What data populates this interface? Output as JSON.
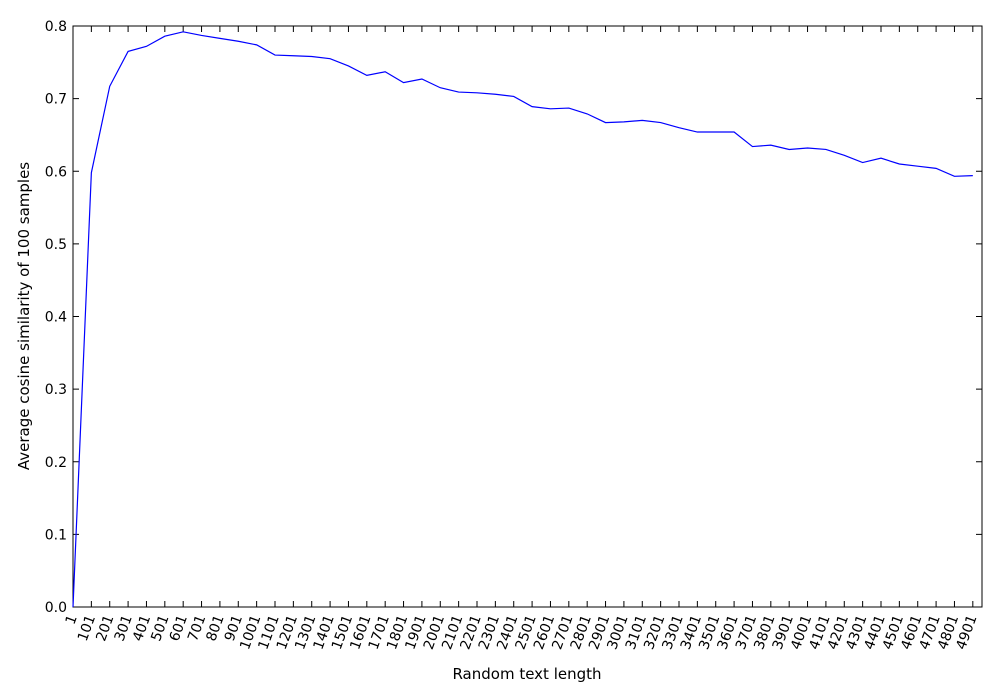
{
  "chart_data": {
    "type": "line",
    "title": "",
    "xlabel": "Random text length",
    "ylabel": "Average cosine similarity of 100 samples",
    "ylim": [
      0,
      0.8
    ],
    "yticks": [
      "0.0",
      "0.1",
      "0.2",
      "0.3",
      "0.4",
      "0.5",
      "0.6",
      "0.7",
      "0.8"
    ],
    "grid": false,
    "line_color": "#0000ff",
    "categories": [
      "1",
      "101",
      "201",
      "301",
      "401",
      "501",
      "601",
      "701",
      "801",
      "901",
      "1001",
      "1101",
      "1201",
      "1301",
      "1401",
      "1501",
      "1601",
      "1701",
      "1801",
      "1901",
      "2001",
      "2101",
      "2201",
      "2301",
      "2401",
      "2501",
      "2601",
      "2701",
      "2801",
      "2901",
      "3001",
      "3101",
      "3201",
      "3301",
      "3401",
      "3501",
      "3601",
      "3701",
      "3801",
      "3901",
      "4001",
      "4101",
      "4201",
      "4301",
      "4401",
      "4501",
      "4601",
      "4701",
      "4801",
      "4901"
    ],
    "series": [
      {
        "name": "cosine similarity",
        "values": [
          0.0,
          0.598,
          0.717,
          0.765,
          0.772,
          0.786,
          0.792,
          0.787,
          0.783,
          0.779,
          0.774,
          0.76,
          0.759,
          0.758,
          0.755,
          0.745,
          0.732,
          0.737,
          0.722,
          0.727,
          0.715,
          0.709,
          0.708,
          0.706,
          0.703,
          0.689,
          0.686,
          0.687,
          0.679,
          0.667,
          0.668,
          0.67,
          0.667,
          0.66,
          0.654,
          0.654,
          0.654,
          0.634,
          0.636,
          0.63,
          0.632,
          0.63,
          0.622,
          0.612,
          0.618,
          0.61,
          0.607,
          0.604,
          0.593,
          0.594
        ]
      }
    ]
  }
}
